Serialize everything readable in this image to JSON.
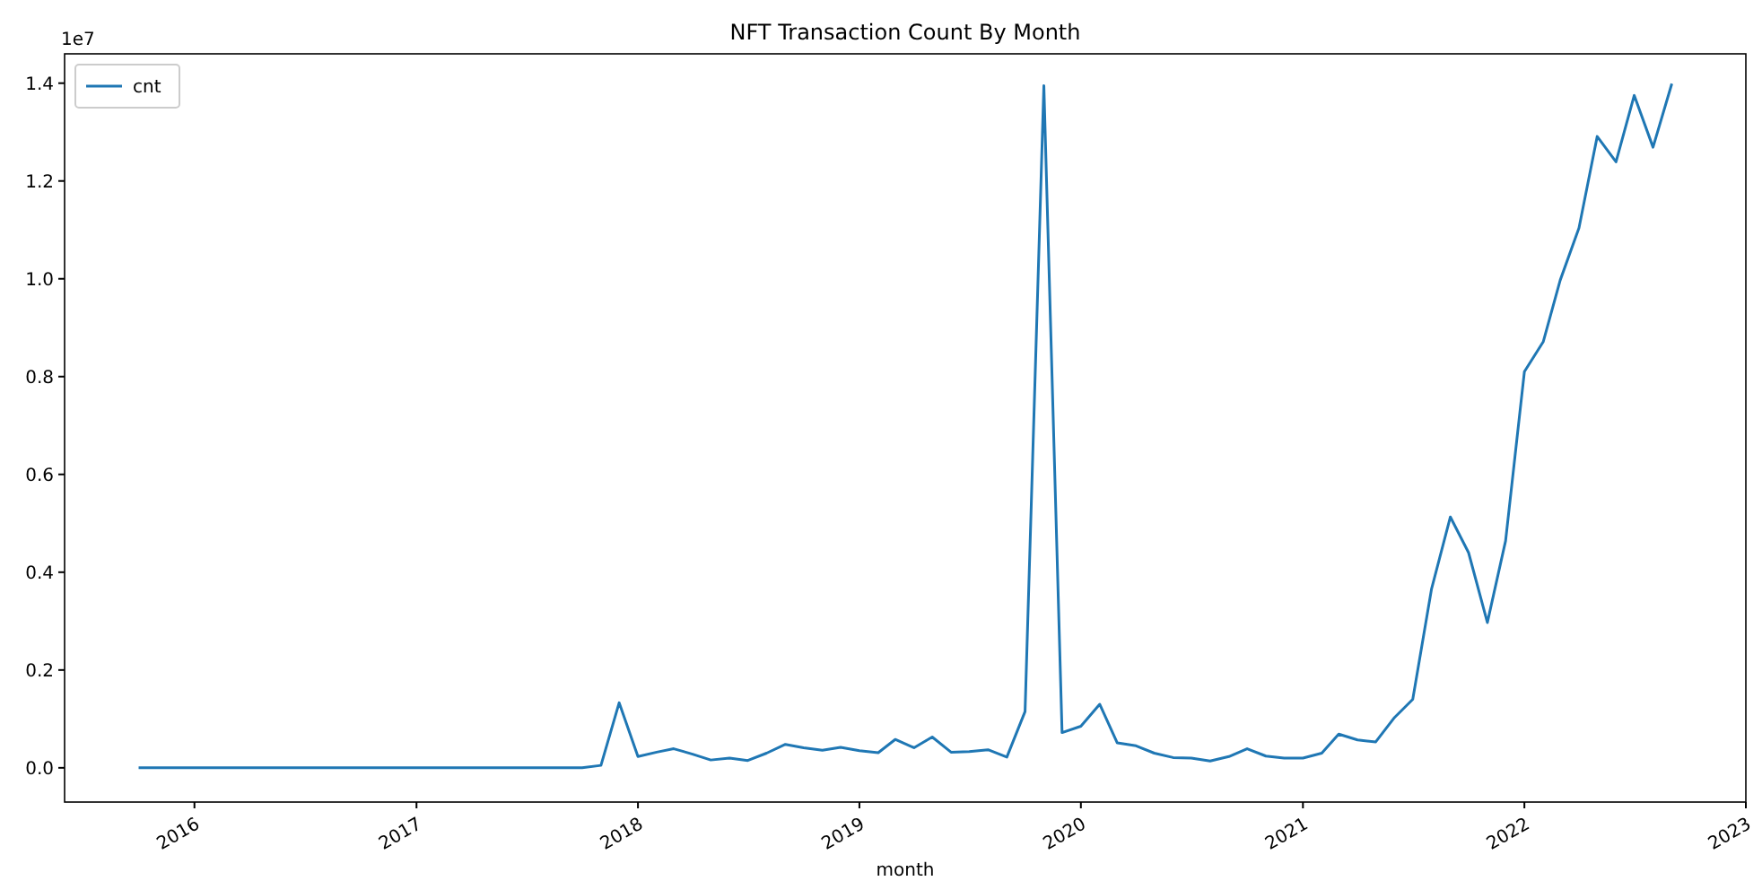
{
  "chart_data": {
    "type": "line",
    "title": "NFT Transaction Count By Month",
    "xlabel": "month",
    "annotations": [
      "1e7"
    ],
    "x": [
      "2015-10",
      "2015-11",
      "2015-12",
      "2016-01",
      "2016-02",
      "2016-03",
      "2016-04",
      "2016-05",
      "2016-06",
      "2016-07",
      "2016-08",
      "2016-09",
      "2016-10",
      "2016-11",
      "2016-12",
      "2017-01",
      "2017-02",
      "2017-03",
      "2017-04",
      "2017-05",
      "2017-06",
      "2017-07",
      "2017-08",
      "2017-09",
      "2017-10",
      "2017-11",
      "2017-12",
      "2018-01",
      "2018-02",
      "2018-03",
      "2018-04",
      "2018-05",
      "2018-06",
      "2018-07",
      "2018-08",
      "2018-09",
      "2018-10",
      "2018-11",
      "2018-12",
      "2019-01",
      "2019-02",
      "2019-03",
      "2019-04",
      "2019-05",
      "2019-06",
      "2019-07",
      "2019-08",
      "2019-09",
      "2019-10",
      "2019-11",
      "2019-12",
      "2020-01",
      "2020-02",
      "2020-03",
      "2020-04",
      "2020-05",
      "2020-06",
      "2020-07",
      "2020-08",
      "2020-09",
      "2020-10",
      "2020-11",
      "2020-12",
      "2021-01",
      "2021-02",
      "2021-03",
      "2021-04",
      "2021-05",
      "2021-06",
      "2021-07",
      "2021-08",
      "2021-09",
      "2021-10",
      "2021-11",
      "2021-12",
      "2022-01",
      "2022-02",
      "2022-03",
      "2022-04",
      "2022-05",
      "2022-06",
      "2022-07",
      "2022-08",
      "2022-09"
    ],
    "series": [
      {
        "name": "cnt",
        "color": "#1f77b4",
        "values": [
          0,
          0,
          0,
          0,
          0,
          0,
          0,
          0,
          0,
          0,
          0,
          0,
          0,
          0,
          0,
          0,
          0,
          0,
          0,
          0,
          0,
          0,
          0,
          0,
          0,
          0.005,
          0.133,
          0.023,
          0.032,
          0.039,
          0.028,
          0.016,
          0.02,
          0.015,
          0.03,
          0.048,
          0.041,
          0.036,
          0.042,
          0.035,
          0.031,
          0.058,
          0.041,
          0.063,
          0.032,
          0.033,
          0.037,
          0.022,
          0.115,
          1.395,
          0.072,
          0.085,
          0.13,
          0.051,
          0.045,
          0.03,
          0.021,
          0.02,
          0.014,
          0.023,
          0.039,
          0.024,
          0.02,
          0.02,
          0.03,
          0.069,
          0.057,
          0.053,
          0.103,
          0.14,
          0.366,
          0.513,
          0.44,
          0.297,
          0.464,
          0.81,
          0.871,
          0.997,
          1.104,
          1.291,
          1.239,
          1.375,
          1.269,
          1.399
        ]
      }
    ],
    "xlim": [
      "2015-06",
      "2023-01"
    ],
    "ylim": [
      -0.07,
      1.46
    ],
    "xticks": [
      {
        "value": "2016",
        "label": "2016"
      },
      {
        "value": "2017",
        "label": "2017"
      },
      {
        "value": "2018",
        "label": "2018"
      },
      {
        "value": "2019",
        "label": "2019"
      },
      {
        "value": "2020",
        "label": "2020"
      },
      {
        "value": "2021",
        "label": "2021"
      },
      {
        "value": "2022",
        "label": "2022"
      },
      {
        "value": "2023",
        "label": "2023"
      }
    ],
    "yticks": [
      {
        "value": 0,
        "label": "0.0"
      },
      {
        "value": 0.2,
        "label": "0.2"
      },
      {
        "value": 0.4,
        "label": "0.4"
      },
      {
        "value": 0.6,
        "label": "0.6"
      },
      {
        "value": 0.8,
        "label": "0.8"
      },
      {
        "value": 1.0,
        "label": "1.0"
      },
      {
        "value": 1.2,
        "label": "1.2"
      },
      {
        "value": 1.4,
        "label": "1.4"
      }
    ],
    "legend": "top left",
    "grid": false,
    "marker": "none",
    "line_style": "solid"
  }
}
